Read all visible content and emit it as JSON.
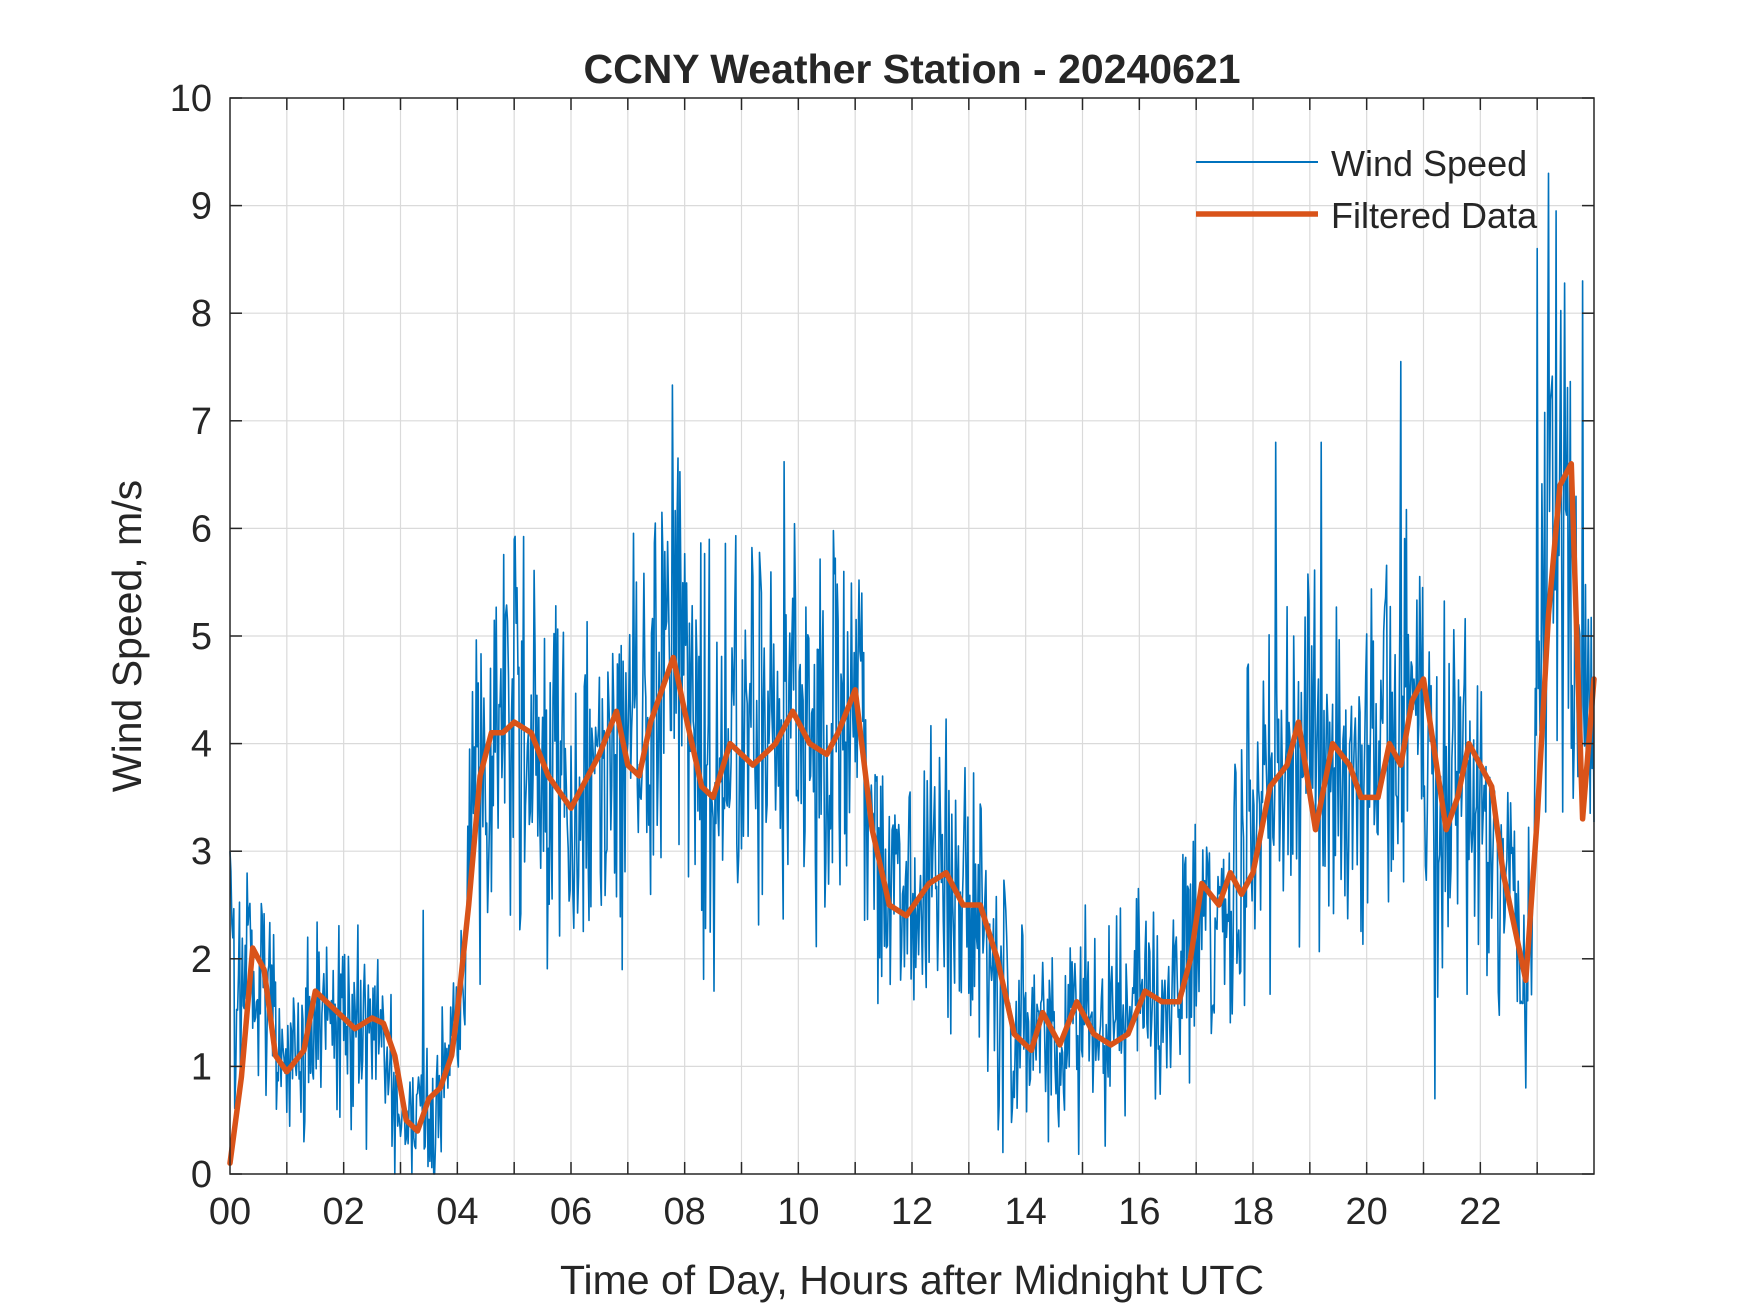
{
  "chart_data": {
    "type": "line",
    "title": "CCNY Weather Station - 20240621",
    "xlabel": "Time of Day, Hours after Midnight UTC",
    "ylabel": "Wind Speed, m/s",
    "xlim": [
      0,
      24
    ],
    "ylim": [
      0,
      10
    ],
    "xticks": [
      0,
      2,
      4,
      6,
      8,
      10,
      12,
      14,
      16,
      18,
      20,
      22
    ],
    "xtick_labels": [
      "00",
      "02",
      "04",
      "06",
      "08",
      "10",
      "12",
      "14",
      "16",
      "18",
      "20",
      "22"
    ],
    "yticks": [
      0,
      1,
      2,
      3,
      4,
      5,
      6,
      7,
      8,
      9,
      10
    ],
    "ytick_labels": [
      "0",
      "1",
      "2",
      "3",
      "4",
      "5",
      "6",
      "7",
      "8",
      "9",
      "10"
    ],
    "grid": true,
    "legend_position": "top-right",
    "series": [
      {
        "name": "Wind Speed",
        "color": "#0072BD",
        "style": "thin",
        "noise_seed": 20240621,
        "x": [
          0,
          0.1,
          0.3,
          0.5,
          0.8,
          1.0,
          1.3,
          1.6,
          2.0,
          2.4,
          2.6,
          2.8,
          3.0,
          3.3,
          3.6,
          3.9,
          4.1,
          4.3,
          4.6,
          5.0,
          5.5,
          6.0,
          6.5,
          7.0,
          7.5,
          7.8,
          8.2,
          8.5,
          9.0,
          9.5,
          10.0,
          10.5,
          11.0,
          11.3,
          11.6,
          12.0,
          12.5,
          13.0,
          13.3,
          13.7,
          14.0,
          14.5,
          15.0,
          15.5,
          16.0,
          16.5,
          17.0,
          17.5,
          18.0,
          18.5,
          19.0,
          19.5,
          20.0,
          20.5,
          20.9,
          21.3,
          21.7,
          22.0,
          22.4,
          22.8,
          23.0,
          23.3,
          23.5,
          23.8,
          24.0
        ],
        "values": [
          2.2,
          1.6,
          1.9,
          1.8,
          1.2,
          1.0,
          1.2,
          1.5,
          1.4,
          1.4,
          1.4,
          1.0,
          0.4,
          0.6,
          0.8,
          1.1,
          2.0,
          3.6,
          4.1,
          4.2,
          3.8,
          3.5,
          3.9,
          4.0,
          4.3,
          4.7,
          4.1,
          3.7,
          3.9,
          4.0,
          4.3,
          4.0,
          4.4,
          3.3,
          2.5,
          2.6,
          2.8,
          2.5,
          2.2,
          1.5,
          1.3,
          1.3,
          1.4,
          1.2,
          1.6,
          1.5,
          2.6,
          2.6,
          3.5,
          3.8,
          3.9,
          3.5,
          3.8,
          4.1,
          4.3,
          3.4,
          3.8,
          3.4,
          2.6,
          2.0,
          4.0,
          6.8,
          5.6,
          4.2,
          4.6
        ],
        "peaks": [
          [
            0.0,
            3.0
          ],
          [
            3.4,
            2.45
          ],
          [
            5.0,
            5.9
          ],
          [
            7.6,
            6.15
          ],
          [
            9.2,
            5.55
          ],
          [
            10.8,
            5.6
          ],
          [
            18.4,
            6.8
          ],
          [
            19.2,
            6.8
          ],
          [
            20.6,
            7.55
          ],
          [
            23.0,
            8.6
          ],
          [
            23.2,
            9.3
          ],
          [
            23.8,
            8.3
          ]
        ],
        "troughs": [
          [
            2.9,
            0.0
          ],
          [
            3.2,
            0.0
          ],
          [
            6.9,
            1.9
          ],
          [
            13.6,
            0.2
          ],
          [
            14.4,
            0.3
          ],
          [
            21.2,
            0.7
          ],
          [
            22.8,
            0.8
          ]
        ]
      },
      {
        "name": "Filtered Data",
        "color": "#D95319",
        "style": "thick",
        "x": [
          0,
          0.2,
          0.4,
          0.6,
          0.8,
          1.0,
          1.3,
          1.5,
          1.8,
          2.0,
          2.2,
          2.5,
          2.7,
          2.9,
          3.1,
          3.3,
          3.5,
          3.7,
          3.9,
          4.0,
          4.2,
          4.4,
          4.6,
          4.8,
          5.0,
          5.3,
          5.6,
          6.0,
          6.3,
          6.5,
          6.8,
          7.0,
          7.2,
          7.4,
          7.6,
          7.8,
          8.0,
          8.3,
          8.5,
          8.8,
          9.2,
          9.6,
          9.9,
          10.2,
          10.5,
          10.7,
          11.0,
          11.3,
          11.6,
          11.9,
          12.3,
          12.6,
          12.9,
          13.2,
          13.5,
          13.8,
          14.1,
          14.3,
          14.6,
          14.9,
          15.2,
          15.5,
          15.8,
          16.1,
          16.4,
          16.7,
          16.9,
          17.1,
          17.4,
          17.6,
          17.8,
          18.0,
          18.3,
          18.6,
          18.8,
          19.1,
          19.4,
          19.7,
          19.9,
          20.2,
          20.4,
          20.6,
          20.8,
          21.0,
          21.2,
          21.4,
          21.6,
          21.8,
          22.0,
          22.2,
          22.4,
          22.6,
          22.8,
          23.0,
          23.2,
          23.4,
          23.6,
          23.8,
          24.0
        ],
        "values": [
          0.1,
          0.9,
          2.1,
          1.9,
          1.1,
          0.95,
          1.15,
          1.7,
          1.55,
          1.45,
          1.35,
          1.45,
          1.4,
          1.1,
          0.5,
          0.4,
          0.7,
          0.8,
          1.1,
          1.5,
          2.5,
          3.7,
          4.1,
          4.1,
          4.2,
          4.1,
          3.7,
          3.4,
          3.7,
          3.9,
          4.3,
          3.8,
          3.7,
          4.2,
          4.5,
          4.8,
          4.3,
          3.6,
          3.5,
          4.0,
          3.8,
          4.0,
          4.3,
          4.0,
          3.9,
          4.1,
          4.5,
          3.2,
          2.5,
          2.4,
          2.7,
          2.8,
          2.5,
          2.5,
          2.0,
          1.3,
          1.15,
          1.5,
          1.2,
          1.6,
          1.3,
          1.2,
          1.3,
          1.7,
          1.6,
          1.6,
          2.0,
          2.7,
          2.5,
          2.8,
          2.6,
          2.8,
          3.6,
          3.8,
          4.2,
          3.2,
          4.0,
          3.8,
          3.5,
          3.5,
          4.0,
          3.8,
          4.4,
          4.6,
          3.9,
          3.2,
          3.5,
          4.0,
          3.8,
          3.6,
          2.8,
          2.3,
          1.8,
          3.3,
          5.2,
          6.4,
          6.6,
          3.3,
          4.6
        ]
      }
    ]
  }
}
